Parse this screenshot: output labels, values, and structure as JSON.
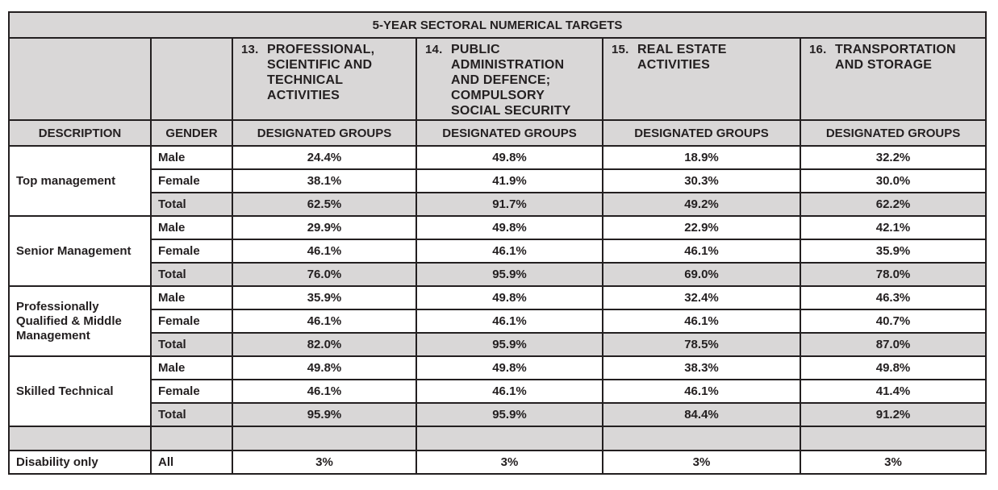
{
  "title": "5-YEAR SECTORAL NUMERICAL TARGETS",
  "columns": [
    {
      "num": "13.",
      "label": "PROFESSIONAL,\nSCIENTIFIC AND\nTECHNICAL\nACTIVITIES"
    },
    {
      "num": "14.",
      "label": "PUBLIC\nADMINISTRATION\nAND DEFENCE;\nCOMPULSORY\nSOCIAL SECURITY"
    },
    {
      "num": "15.",
      "label": "REAL ESTATE\nACTIVITIES"
    },
    {
      "num": "16.",
      "label": "TRANSPORTATION\nAND STORAGE"
    }
  ],
  "subheader": {
    "description": "DESCRIPTION",
    "gender": "GENDER",
    "groups": [
      "DESIGNATED GROUPS",
      "DESIGNATED GROUPS",
      "DESIGNATED GROUPS",
      "DESIGNATED GROUPS"
    ]
  },
  "groups": [
    {
      "description": "Top management",
      "rows": [
        {
          "gender": "Male",
          "values": [
            "24.4%",
            "49.8%",
            "18.9%",
            "32.2%"
          ]
        },
        {
          "gender": "Female",
          "values": [
            "38.1%",
            "41.9%",
            "30.3%",
            "30.0%"
          ]
        },
        {
          "gender": "Total",
          "values": [
            "62.5%",
            "91.7%",
            "49.2%",
            "62.2%"
          ]
        }
      ]
    },
    {
      "description": "Senior Management",
      "rows": [
        {
          "gender": "Male",
          "values": [
            "29.9%",
            "49.8%",
            "22.9%",
            "42.1%"
          ]
        },
        {
          "gender": "Female",
          "values": [
            "46.1%",
            "46.1%",
            "46.1%",
            "35.9%"
          ]
        },
        {
          "gender": "Total",
          "values": [
            "76.0%",
            "95.9%",
            "69.0%",
            "78.0%"
          ]
        }
      ]
    },
    {
      "description": "Professionally Qualified & Middle Management",
      "rows": [
        {
          "gender": "Male",
          "values": [
            "35.9%",
            "49.8%",
            "32.4%",
            "46.3%"
          ]
        },
        {
          "gender": "Female",
          "values": [
            "46.1%",
            "46.1%",
            "46.1%",
            "40.7%"
          ]
        },
        {
          "gender": "Total",
          "values": [
            "82.0%",
            "95.9%",
            "78.5%",
            "87.0%"
          ]
        }
      ]
    },
    {
      "description": "Skilled Technical",
      "rows": [
        {
          "gender": "Male",
          "values": [
            "49.8%",
            "49.8%",
            "38.3%",
            "49.8%"
          ]
        },
        {
          "gender": "Female",
          "values": [
            "46.1%",
            "46.1%",
            "46.1%",
            "41.4%"
          ]
        },
        {
          "gender": "Total",
          "values": [
            "95.9%",
            "95.9%",
            "84.4%",
            "91.2%"
          ]
        }
      ]
    }
  ],
  "disability": {
    "description": "Disability only",
    "gender": "All",
    "values": [
      "3%",
      "3%",
      "3%",
      "3%"
    ]
  },
  "colors": {
    "border": "#231f20",
    "shade": "#d9d7d7"
  }
}
